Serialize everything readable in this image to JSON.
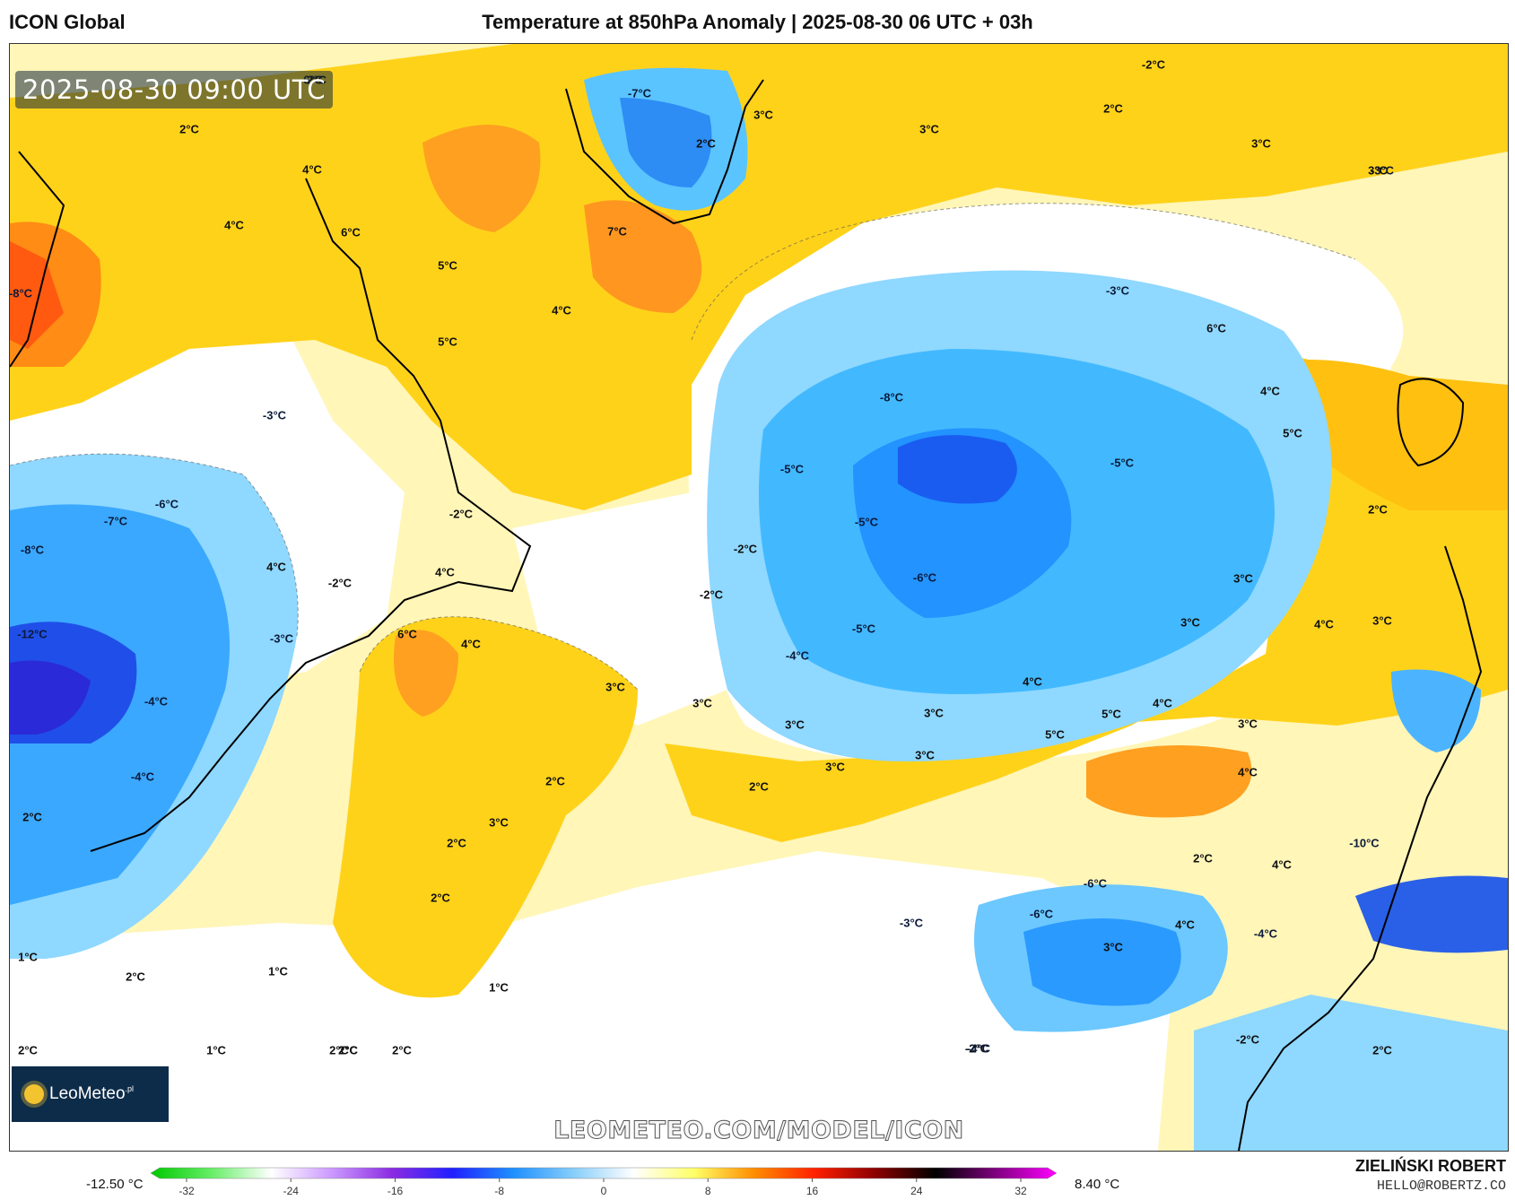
{
  "header": {
    "model": "ICON Global",
    "title": "Temperature at 850hPa Anomaly | 2025-08-30 06 UTC + 03h"
  },
  "map": {
    "valid_time": "2025-08-30 09:00 UTC",
    "watermark": "LEOMETEO.COM/MODEL/ICON",
    "logo": {
      "name": "LeoMeteo",
      "suffix": ".pl",
      "icon": "sun-icon"
    },
    "labels": [
      {
        "t": "6°C",
        "c": "o"
      },
      {
        "t": "4°C",
        "c": "y"
      },
      {
        "t": "2°C",
        "c": "y"
      },
      {
        "t": "-2°C",
        "c": "w"
      },
      {
        "t": "4°C",
        "c": "y"
      },
      {
        "t": "6°C",
        "c": "o"
      },
      {
        "t": "5°C",
        "c": "o"
      },
      {
        "t": "5°C",
        "c": "o"
      },
      {
        "t": "4°C",
        "c": "y"
      },
      {
        "t": "-8°C",
        "c": "b"
      },
      {
        "t": "-3°C",
        "c": "b"
      },
      {
        "t": "-6°C",
        "c": "b"
      },
      {
        "t": "-7°C",
        "c": "b"
      },
      {
        "t": "-8°C",
        "c": "b"
      },
      {
        "t": "-12°C",
        "c": "b"
      },
      {
        "t": "4°C",
        "c": "y"
      },
      {
        "t": "-2°C",
        "c": "w"
      },
      {
        "t": "-2°C",
        "c": "w"
      },
      {
        "t": "-3°C",
        "c": "b"
      },
      {
        "t": "-4°C",
        "c": "b"
      },
      {
        "t": "-4°C",
        "c": "b"
      },
      {
        "t": "2°C",
        "c": "w"
      },
      {
        "t": "-7°C",
        "c": "b"
      },
      {
        "t": "7°C",
        "c": "o"
      },
      {
        "t": "3°C",
        "c": "y"
      },
      {
        "t": "2°C",
        "c": "y"
      },
      {
        "t": "3°C",
        "c": "y"
      },
      {
        "t": "-2°C",
        "c": "w"
      },
      {
        "t": "2°C",
        "c": "y"
      },
      {
        "t": "3°C",
        "c": "y"
      },
      {
        "t": "-3°C",
        "c": "b"
      },
      {
        "t": "-8°C",
        "c": "b"
      },
      {
        "t": "-5°C",
        "c": "b"
      },
      {
        "t": "-5°C",
        "c": "b"
      },
      {
        "t": "-5°C",
        "c": "b"
      },
      {
        "t": "-6°C",
        "c": "b"
      },
      {
        "t": "-2°C",
        "c": "w"
      },
      {
        "t": "-2°C",
        "c": "w"
      },
      {
        "t": "-5°C",
        "c": "b"
      },
      {
        "t": "-4°C",
        "c": "b"
      },
      {
        "t": "4°C",
        "c": "y"
      },
      {
        "t": "6°C",
        "c": "o"
      },
      {
        "t": "4°C",
        "c": "y"
      },
      {
        "t": "3°C",
        "c": "y"
      },
      {
        "t": "3°C",
        "c": "y"
      },
      {
        "t": "3°C",
        "c": "y"
      },
      {
        "t": "3°C",
        "c": "y"
      },
      {
        "t": "3°C",
        "c": "y"
      },
      {
        "t": "3°C",
        "c": "y"
      },
      {
        "t": "2°C",
        "c": "y"
      },
      {
        "t": "2°C",
        "c": "y"
      },
      {
        "t": "3°C",
        "c": "y"
      },
      {
        "t": "2°C",
        "c": "y"
      },
      {
        "t": "2°C",
        "c": "y"
      },
      {
        "t": "4°C",
        "c": "y"
      },
      {
        "t": "5°C",
        "c": "o"
      },
      {
        "t": "4°C",
        "c": "y"
      },
      {
        "t": "5°C",
        "c": "o"
      },
      {
        "t": "3°C",
        "c": "y"
      },
      {
        "t": "3°C",
        "c": "y"
      },
      {
        "t": "3°C",
        "c": "y"
      },
      {
        "t": "4°C",
        "c": "y"
      },
      {
        "t": "5°C",
        "c": "o"
      },
      {
        "t": "4°C",
        "c": "y"
      },
      {
        "t": "2°C",
        "c": "y"
      },
      {
        "t": "3°C",
        "c": "y"
      },
      {
        "t": "-3°C",
        "c": "b"
      },
      {
        "t": "6°C",
        "c": "o"
      },
      {
        "t": "4°C",
        "c": "y"
      },
      {
        "t": "3°C",
        "c": "y"
      },
      {
        "t": "4°C",
        "c": "y"
      },
      {
        "t": "-3°C",
        "c": "b"
      },
      {
        "t": "-6°C",
        "c": "b"
      },
      {
        "t": "-6°C",
        "c": "b"
      },
      {
        "t": "3°C",
        "c": "y"
      },
      {
        "t": "2°C",
        "c": "y"
      },
      {
        "t": "-4°C",
        "c": "b"
      },
      {
        "t": "-10°C",
        "c": "b"
      },
      {
        "t": "4°C",
        "c": "y"
      },
      {
        "t": "-2°C",
        "c": "w"
      },
      {
        "t": "2°C",
        "c": "y"
      },
      {
        "t": "-2°C",
        "c": "w"
      },
      {
        "t": "-4°C",
        "c": "b"
      },
      {
        "t": "1°C",
        "c": "w"
      },
      {
        "t": "2°C",
        "c": "y"
      },
      {
        "t": "1°C",
        "c": "w"
      },
      {
        "t": "1°C",
        "c": "w"
      },
      {
        "t": "2°C",
        "c": "w"
      },
      {
        "t": "1°C",
        "c": "w"
      },
      {
        "t": "2°C",
        "c": "w"
      },
      {
        "t": "2°C",
        "c": "w"
      },
      {
        "t": "2°C",
        "c": "y"
      },
      {
        "t": "2°C",
        "c": "y"
      }
    ]
  },
  "legend": {
    "min_label": "-12.50 °C",
    "max_label": "8.40 °C",
    "unit": "°C",
    "ticks": [
      "-32",
      "-24",
      "-16",
      "-8",
      "0",
      "8",
      "16",
      "24",
      "32"
    ],
    "stops": [
      "#00c800",
      "#66ee66",
      "#ffffff",
      "#cc99ff",
      "#8a2be2",
      "#2020ff",
      "#1e90ff",
      "#87cefa",
      "#ffffff",
      "#ffff66",
      "#ff8c00",
      "#ff2000",
      "#8b0000",
      "#000000",
      "#800080",
      "#ff00ff"
    ]
  },
  "credit": {
    "name": "ZIELIŃSKI ROBERT",
    "email": "HELLO@ROBERTZ.CO"
  }
}
